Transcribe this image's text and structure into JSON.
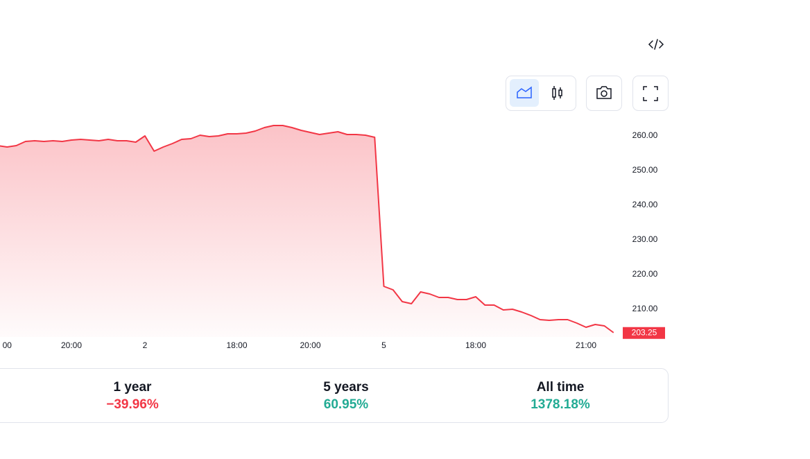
{
  "chart_data": {
    "type": "area",
    "categories": [
      null,
      "00",
      null,
      null,
      null,
      null,
      null,
      null,
      "20:00",
      null,
      null,
      null,
      null,
      null,
      null,
      null,
      "2",
      null,
      null,
      null,
      null,
      null,
      null,
      null,
      null,
      null,
      "18:00",
      null,
      null,
      null,
      null,
      null,
      null,
      null,
      "20:00",
      null,
      null,
      null,
      null,
      null,
      null,
      null,
      "5",
      null,
      null,
      null,
      null,
      null,
      null,
      null,
      null,
      null,
      "18:00",
      null,
      null,
      null,
      null,
      null,
      null,
      null,
      null,
      null,
      null,
      null,
      "21:00",
      null,
      null,
      null
    ],
    "values": [
      257.2,
      256.8,
      257.2,
      258.4,
      258.6,
      258.4,
      258.6,
      258.4,
      258.8,
      259.0,
      258.8,
      258.6,
      259.0,
      258.6,
      258.6,
      258.2,
      260.0,
      255.6,
      256.8,
      257.8,
      259.0,
      259.2,
      260.2,
      259.8,
      260.0,
      260.6,
      260.6,
      260.8,
      261.4,
      262.4,
      263.0,
      263.0,
      262.4,
      261.6,
      261.0,
      260.4,
      260.8,
      261.2,
      260.4,
      260.4,
      260.2,
      259.6,
      216.6,
      215.6,
      212.2,
      211.6,
      215.0,
      214.4,
      213.4,
      213.4,
      212.8,
      212.8,
      213.6,
      211.2,
      211.2,
      209.8,
      210.0,
      209.2,
      208.2,
      207.0,
      206.8,
      207.0,
      207.0,
      206.0,
      204.8,
      205.6,
      205.2,
      203.25
    ],
    "color": "#f23645",
    "ylim": [
      202,
      265
    ],
    "yticks": [
      {
        "value": 210,
        "label": "210.00"
      },
      {
        "value": 220,
        "label": "220.00"
      },
      {
        "value": 230,
        "label": "230.00"
      },
      {
        "value": 240,
        "label": "240.00"
      },
      {
        "value": 250,
        "label": "250.00"
      },
      {
        "value": 260,
        "label": "260.00"
      }
    ],
    "grid": false
  },
  "performance": [
    {
      "label": "1 year",
      "value": "−39.96%",
      "color": "#f23645"
    },
    {
      "label": "5 years",
      "value": "60.95%",
      "color": "#22ab94"
    },
    {
      "label": "All time",
      "value": "1378.18%",
      "color": "#22ab94"
    }
  ]
}
